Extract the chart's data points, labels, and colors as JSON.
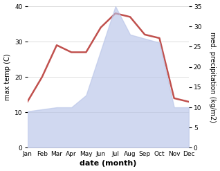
{
  "months": [
    "Jan",
    "Feb",
    "Mar",
    "Apr",
    "May",
    "Jun",
    "Jul",
    "Aug",
    "Sep",
    "Oct",
    "Nov",
    "Dec"
  ],
  "max_temp": [
    13.0,
    20.0,
    29.0,
    27.0,
    27.0,
    34.0,
    38.0,
    37.0,
    32.0,
    31.0,
    14.0,
    13.0
  ],
  "precipitation": [
    9.0,
    9.5,
    10.0,
    10.0,
    13.0,
    24.0,
    35.0,
    28.0,
    27.0,
    26.0,
    10.0,
    10.0
  ],
  "temp_color": "#c0504d",
  "precip_fill_color": "#b8c4e8",
  "precip_alpha": 0.65,
  "temp_ylim": [
    0,
    40
  ],
  "precip_ylim": [
    0,
    35
  ],
  "temp_yticks": [
    0,
    10,
    20,
    30,
    40
  ],
  "precip_yticks": [
    0,
    5,
    10,
    15,
    20,
    25,
    30,
    35
  ],
  "xlabel": "date (month)",
  "ylabel_left": "max temp (C)",
  "ylabel_right": "med. precipitation (kg/m2)",
  "background_color": "#ffffff",
  "grid_color": "#d0d0d0",
  "line_width": 1.8,
  "tick_fontsize": 6.5,
  "label_fontsize": 7,
  "xlabel_fontsize": 8
}
